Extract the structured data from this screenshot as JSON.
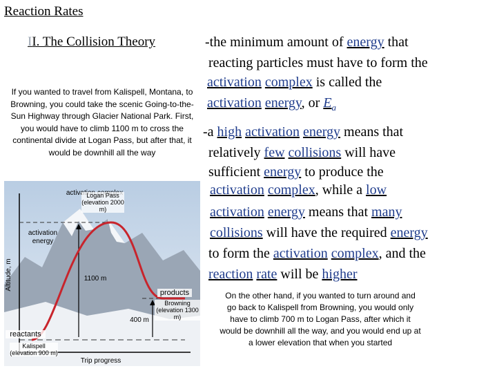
{
  "slide": {
    "title": "Reaction Rates",
    "section_roman": "I",
    "section_rest": "I.  The Collision Theory",
    "def1": {
      "intro": "-the minimum amount of",
      "word_energy": "energy",
      "tail1": "that",
      "line2": "reacting particles must have to form the",
      "word_activation": "activation",
      "word_complex": "complex",
      "tail3": "is called the",
      "word_activation2": "activation",
      "word_energy2": "energy",
      "or": ", or",
      "symbol": "E",
      "subscript": "a"
    },
    "def2": {
      "dash_a": "-a",
      "word_high": "high",
      "word_activation": "activation",
      "word_energy": "energy",
      "means_that": "means that",
      "relatively": "relatively",
      "word_few": "few",
      "word_collisions": "collisions",
      "will_have": "will have",
      "sufficient": "sufficient",
      "word_energy2": "energy",
      "to_produce": "to produce the",
      "word_activation2": "activation",
      "word_complex": "complex",
      "while_a": ", while a",
      "word_low": "low",
      "word_activation3": "activation",
      "word_energy3": "energy",
      "means_that2": "means that",
      "word_many": "many",
      "word_collisions2": "collisions",
      "will_have_required": "will have the required",
      "word_energy4": "energy",
      "to_form": "to form the",
      "word_activation4": "activation",
      "word_complex2": "complex",
      "and_the": ", and the",
      "word_reaction": "reaction",
      "word_rate": "rate",
      "will_be": "will be",
      "word_higher": "higher"
    }
  },
  "notes": {
    "left": "If you wanted to travel from Kalispell, Montana, to Browning, you could take the scenic Going-to-the-Sun Highway through Glacier National Park.  First, you would have to climb 1100 m to cross the continental divide at Logan Pass, but after that, it would be downhill all the way",
    "right": "On the other hand, if you wanted to turn around and go back to Kalispell from Browning, you would only have to climb 700 m to Logan Pass, after which it would be downhill all the way, and you would end up at a lower elevation that when you started"
  },
  "diagram": {
    "label_complex": "activation complex",
    "label_energy": "activation energy",
    "label_products": "products",
    "label_reactants": "reactants",
    "logan": "Logan Pass (elevation 2000 m)",
    "browning": "Browning (elevation 1300 m)",
    "kalispell": "Kalispell (elevation 900 m)",
    "m1100": "1100 m",
    "m400": "400 m",
    "y_axis": "Altitude, m",
    "x_axis": "Trip progress",
    "colors": {
      "curve": "#c8242c",
      "sky": "#c9d9ea",
      "snow": "#f4f6f9",
      "rock": "#8a96a6"
    }
  }
}
